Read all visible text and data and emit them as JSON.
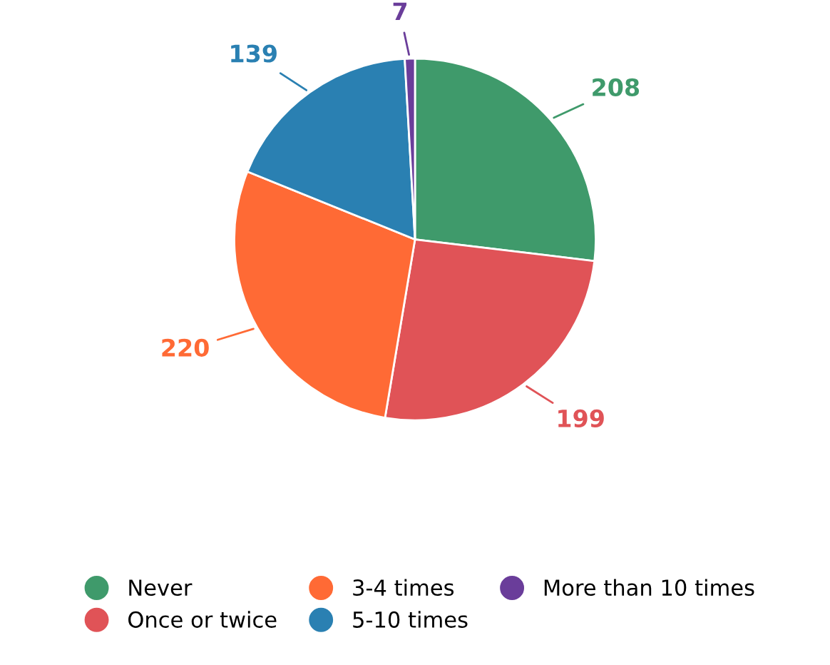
{
  "chart_data": {
    "type": "pie",
    "categories": [
      "Never",
      "Once or twice",
      "3-4 times",
      "5-10 times",
      "More than 10 times"
    ],
    "values": [
      208,
      199,
      220,
      139,
      7
    ],
    "colors": [
      "#3f9a6b",
      "#e05357",
      "#ff6a35",
      "#2a80b2",
      "#6a3d9a"
    ],
    "data_labels": true,
    "legend": "bottom"
  }
}
